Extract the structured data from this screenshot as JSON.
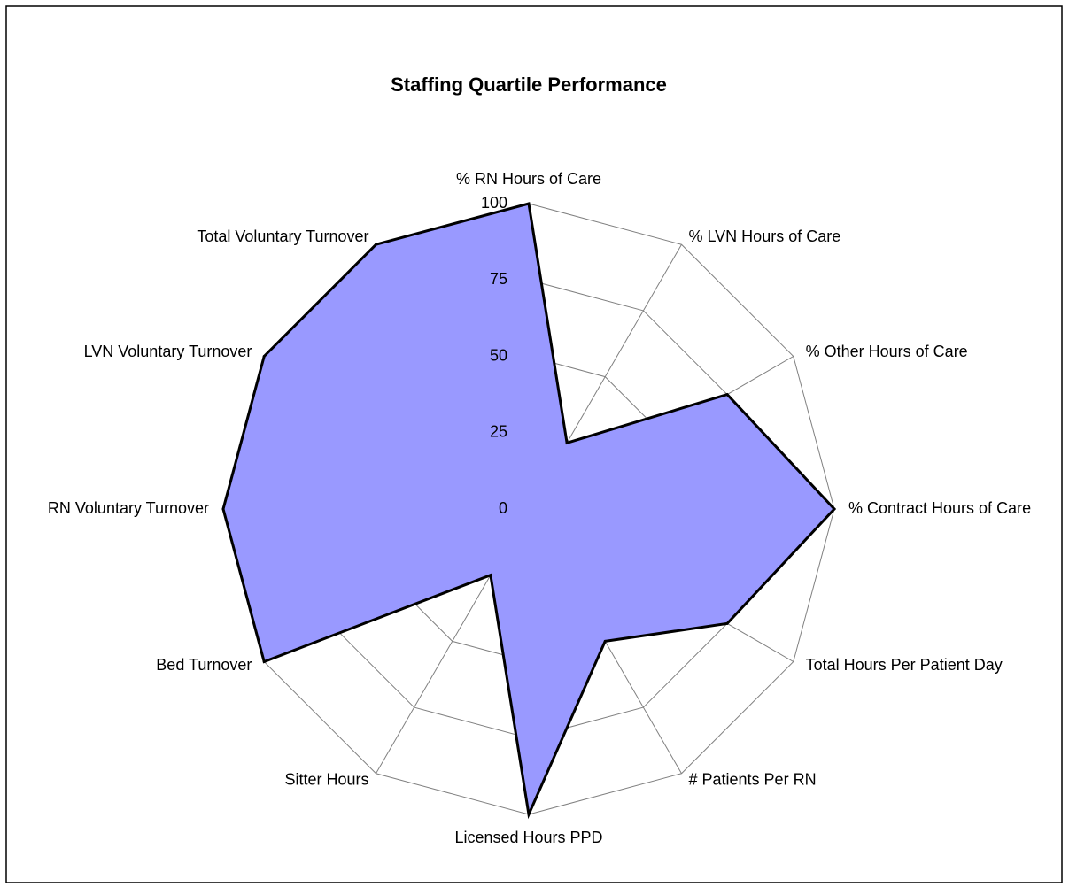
{
  "chart_data": {
    "type": "radar",
    "title": "Staffing Quartile Performance",
    "categories": [
      "% RN Hours of Care",
      "% LVN Hours of Care",
      "% Other Hours of Care",
      "% Contract Hours of Care",
      "Total Hours Per Patient Day",
      "# Patients Per RN",
      "Licensed Hours PPD",
      "Sitter Hours",
      "Bed Turnover",
      "RN Voluntary Turnover",
      "LVN Voluntary Turnover",
      "Total Voluntary Turnover"
    ],
    "values": [
      100,
      25,
      75,
      100,
      75,
      50,
      100,
      25,
      100,
      100,
      100,
      100
    ],
    "color": "#9999ff",
    "ylim": [
      0,
      100
    ],
    "yticks": [
      0,
      25,
      50,
      75,
      100
    ],
    "grid": true
  }
}
